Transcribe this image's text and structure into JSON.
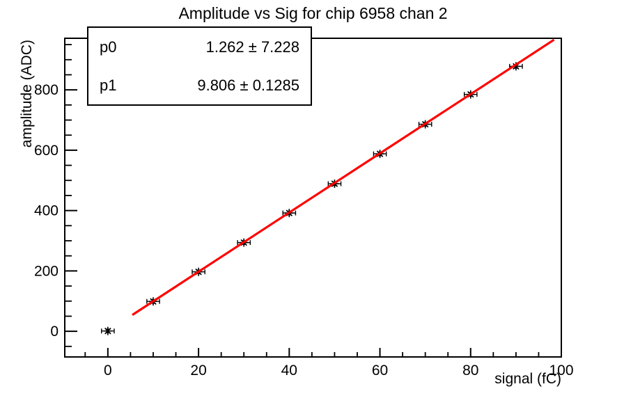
{
  "page": {
    "background": "#ffffff",
    "foreground": "#000000"
  },
  "chart_data": {
    "type": "scatter",
    "title": "Amplitude vs Sig for chip 6958 chan 2",
    "xlabel": "signal (fC)",
    "ylabel": "amplitude (ADC)",
    "xlim": [
      -9.5,
      100
    ],
    "ylim": [
      -85,
      971
    ],
    "xticks": [
      0,
      20,
      40,
      60,
      80,
      100
    ],
    "yticks": [
      0,
      200,
      400,
      600,
      800
    ],
    "x_minor_step": 5,
    "y_minor_step": 50,
    "grid": false,
    "legend_position": "none",
    "axis_color": "#000000",
    "points": {
      "x": [
        0,
        10,
        20,
        30,
        40,
        50,
        60,
        70,
        80,
        90
      ],
      "y": [
        1,
        99,
        197,
        294,
        392,
        489,
        588,
        686,
        785,
        878
      ],
      "x_err": 1.4,
      "y_err": 6,
      "marker": "star",
      "color": "#000000"
    },
    "fit": {
      "p0": 1.262,
      "p0_err": 7.228,
      "p1": 9.806,
      "p1_err": 0.1285,
      "range": [
        5.4,
        98.4
      ],
      "color": "#ff0000"
    },
    "stats_box": {
      "rows": [
        {
          "label": "p0",
          "value": "1.262 ± 7.228"
        },
        {
          "label": "p1",
          "value": "9.806 ± 0.1285"
        }
      ]
    }
  }
}
